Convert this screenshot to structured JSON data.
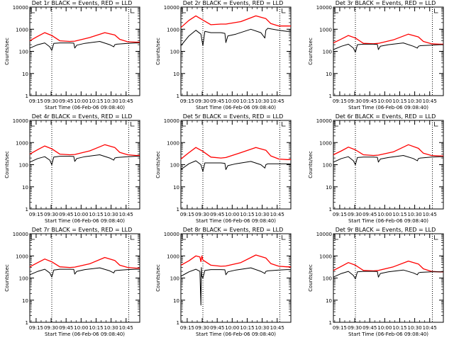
{
  "page": {
    "background": "#ffffff",
    "colors": {
      "axes": "#000000",
      "events": "#000000",
      "lld": "#ff0000"
    }
  },
  "chart_data": [
    {
      "type": "line",
      "title": "Det 1r BLACK = Events, RED = LLD",
      "ylabel": "Counts/sec",
      "xlabel": "Start Time (06-Feb-06 09:08:40)",
      "xticks": [
        "09:15",
        "09:30",
        "09:45",
        "10:00",
        "10:15",
        "10:30",
        "10:45"
      ],
      "xlim_minutes": [
        0,
        110
      ],
      "yscale": "log",
      "ylim": [
        1,
        10000
      ],
      "yticks": [
        "1",
        "10",
        "100",
        "1000",
        "10000"
      ],
      "vlines_minutes": [
        22,
        99
      ],
      "series": [
        {
          "color": "#ff0000",
          "x": [
            0,
            8,
            15,
            22,
            30,
            40,
            45,
            60,
            75,
            85,
            90,
            98,
            106,
            110
          ],
          "y": [
            300,
            480,
            700,
            520,
            300,
            280,
            290,
            420,
            700,
            550,
            350,
            270,
            260,
            260
          ]
        },
        {
          "color": "#000000",
          "x": [
            0,
            8,
            15,
            20,
            22,
            24,
            30,
            40,
            44,
            45,
            47,
            55,
            70,
            80,
            84,
            85,
            87,
            98,
            106,
            110
          ],
          "y": [
            140,
            200,
            240,
            160,
            110,
            230,
            240,
            240,
            235,
            140,
            190,
            230,
            280,
            200,
            160,
            200,
            210,
            230,
            240,
            240
          ]
        }
      ]
    },
    {
      "type": "line",
      "title": "Det 2r BLACK = Events, RED = LLD",
      "ylabel": "Counts/sec",
      "xlabel": "Start Time (06-Feb-06 09:08:40)",
      "xticks": [
        "09:15",
        "09:30",
        "09:45",
        "10:00",
        "10:15",
        "10:30",
        "10:45"
      ],
      "xlim_minutes": [
        0,
        110
      ],
      "yscale": "log",
      "ylim": [
        1,
        10000
      ],
      "yticks": [
        "1",
        "10",
        "100",
        "1000",
        "10000"
      ],
      "vlines_minutes": [
        22,
        99
      ],
      "series": [
        {
          "color": "#ff0000",
          "x": [
            0,
            8,
            15,
            22,
            30,
            40,
            45,
            60,
            75,
            85,
            90,
            98,
            106,
            110
          ],
          "y": [
            1200,
            2500,
            4000,
            2600,
            1600,
            1700,
            1700,
            2200,
            4000,
            3000,
            1800,
            1400,
            1400,
            1400
          ]
        },
        {
          "color": "#000000",
          "x": [
            0,
            8,
            15,
            20,
            22,
            24,
            30,
            40,
            44,
            45,
            47,
            55,
            70,
            80,
            84,
            85,
            87,
            98,
            106,
            110
          ],
          "y": [
            180,
            500,
            900,
            600,
            180,
            800,
            700,
            700,
            650,
            250,
            500,
            600,
            1000,
            700,
            400,
            900,
            1100,
            900,
            800,
            800
          ]
        }
      ]
    },
    {
      "type": "line",
      "title": "Det 3r BLACK = Events, RED = LLD",
      "ylabel": "Counts/sec",
      "xlabel": "Start Time (06-Feb-06 09:08:40)",
      "xticks": [
        "09:15",
        "09:30",
        "09:45",
        "10:00",
        "10:15",
        "10:30",
        "10:45"
      ],
      "xlim_minutes": [
        0,
        110
      ],
      "yscale": "log",
      "ylim": [
        1,
        10000
      ],
      "yticks": [
        "1",
        "10",
        "100",
        "1000",
        "10000"
      ],
      "vlines_minutes": [
        22,
        99
      ],
      "series": [
        {
          "color": "#ff0000",
          "x": [
            0,
            8,
            15,
            22,
            30,
            40,
            45,
            60,
            75,
            85,
            90,
            98,
            106,
            110
          ],
          "y": [
            240,
            360,
            520,
            400,
            230,
            220,
            230,
            330,
            600,
            450,
            280,
            220,
            210,
            210
          ]
        },
        {
          "color": "#000000",
          "x": [
            0,
            8,
            15,
            20,
            22,
            24,
            30,
            40,
            44,
            45,
            47,
            55,
            70,
            80,
            84,
            85,
            87,
            98,
            106,
            110
          ],
          "y": [
            120,
            170,
            210,
            140,
            90,
            200,
            210,
            210,
            205,
            120,
            170,
            200,
            240,
            170,
            140,
            170,
            180,
            190,
            200,
            200
          ]
        }
      ]
    },
    {
      "type": "line",
      "title": "Det 4r BLACK = Events, RED = LLD",
      "ylabel": "Counts/sec",
      "xlabel": "Start Time (06-Feb-06 09:08:40)",
      "xticks": [
        "09:15",
        "09:30",
        "09:45",
        "10:00",
        "10:15",
        "10:30",
        "10:45"
      ],
      "xlim_minutes": [
        0,
        110
      ],
      "yscale": "log",
      "ylim": [
        1,
        10000
      ],
      "yticks": [
        "1",
        "10",
        "100",
        "1000",
        "10000"
      ],
      "vlines_minutes": [
        22,
        99
      ],
      "series": [
        {
          "color": "#ff0000",
          "x": [
            0,
            8,
            15,
            22,
            30,
            40,
            45,
            60,
            75,
            85,
            90,
            98,
            106,
            110
          ],
          "y": [
            300,
            480,
            700,
            520,
            300,
            280,
            290,
            420,
            800,
            600,
            360,
            280,
            260,
            260
          ]
        },
        {
          "color": "#000000",
          "x": [
            0,
            8,
            15,
            20,
            22,
            24,
            30,
            40,
            44,
            45,
            47,
            55,
            70,
            80,
            84,
            85,
            87,
            98,
            106,
            110
          ],
          "y": [
            130,
            190,
            230,
            160,
            100,
            220,
            240,
            240,
            235,
            140,
            190,
            230,
            280,
            200,
            160,
            200,
            210,
            230,
            240,
            240
          ]
        }
      ]
    },
    {
      "type": "line",
      "title": "Det 5r BLACK = Events, RED = LLD",
      "ylabel": "Counts/sec",
      "xlabel": "Start Time (06-Feb-06 09:08:40)",
      "xticks": [
        "09:15",
        "09:30",
        "09:45",
        "10:00",
        "10:15",
        "10:30",
        "10:45"
      ],
      "xlim_minutes": [
        0,
        110
      ],
      "yscale": "log",
      "ylim": [
        1,
        10000
      ],
      "yticks": [
        "1",
        "10",
        "100",
        "1000",
        "10000"
      ],
      "vlines_minutes": [
        22,
        99
      ],
      "series": [
        {
          "color": "#ff0000",
          "x": [
            0,
            8,
            15,
            22,
            30,
            40,
            45,
            60,
            75,
            85,
            90,
            98,
            106,
            110
          ],
          "y": [
            180,
            350,
            600,
            400,
            220,
            200,
            210,
            350,
            600,
            450,
            250,
            180,
            170,
            170
          ]
        },
        {
          "color": "#000000",
          "x": [
            0,
            8,
            15,
            20,
            22,
            24,
            30,
            40,
            44,
            45,
            47,
            55,
            70,
            80,
            84,
            85,
            87,
            98,
            106,
            110
          ],
          "y": [
            60,
            110,
            150,
            100,
            50,
            120,
            120,
            120,
            115,
            60,
            90,
            110,
            140,
            100,
            70,
            100,
            110,
            110,
            110,
            110
          ]
        }
      ]
    },
    {
      "type": "line",
      "title": "Det 6r BLACK = Events, RED = LLD",
      "ylabel": "Counts/sec",
      "xlabel": "Start Time (06-Feb-06 09:08:40)",
      "xticks": [
        "09:15",
        "09:30",
        "09:45",
        "10:00",
        "10:15",
        "10:30",
        "10:45"
      ],
      "xlim_minutes": [
        0,
        110
      ],
      "yscale": "log",
      "ylim": [
        1,
        10000
      ],
      "yticks": [
        "1",
        "10",
        "100",
        "1000",
        "10000"
      ],
      "vlines_minutes": [
        22,
        99
      ],
      "series": [
        {
          "color": "#ff0000",
          "x": [
            0,
            8,
            15,
            22,
            30,
            40,
            45,
            60,
            75,
            85,
            90,
            98,
            106,
            110
          ],
          "y": [
            280,
            420,
            620,
            470,
            280,
            260,
            270,
            380,
            800,
            550,
            330,
            260,
            250,
            250
          ]
        },
        {
          "color": "#000000",
          "x": [
            0,
            8,
            15,
            20,
            22,
            24,
            30,
            40,
            44,
            45,
            47,
            55,
            70,
            80,
            84,
            85,
            87,
            98,
            106,
            110
          ],
          "y": [
            130,
            190,
            230,
            150,
            100,
            210,
            220,
            220,
            215,
            130,
            180,
            210,
            260,
            190,
            150,
            190,
            200,
            220,
            230,
            230
          ]
        }
      ]
    },
    {
      "type": "line",
      "title": "Det 7r BLACK = Events, RED = LLD",
      "ylabel": "Counts/sec",
      "xlabel": "Start Time (06-Feb-06 09:08:40)",
      "xticks": [
        "09:15",
        "09:30",
        "09:45",
        "10:00",
        "10:15",
        "10:30",
        "10:45"
      ],
      "xlim_minutes": [
        0,
        110
      ],
      "yscale": "log",
      "ylim": [
        1,
        10000
      ],
      "yticks": [
        "1",
        "10",
        "100",
        "1000",
        "10000"
      ],
      "vlines_minutes": [
        22,
        99
      ],
      "series": [
        {
          "color": "#ff0000",
          "x": [
            0,
            8,
            15,
            22,
            30,
            40,
            45,
            60,
            75,
            85,
            90,
            98,
            106,
            110
          ],
          "y": [
            320,
            500,
            720,
            540,
            320,
            300,
            310,
            440,
            850,
            620,
            380,
            300,
            280,
            280
          ]
        },
        {
          "color": "#000000",
          "x": [
            0,
            8,
            15,
            20,
            22,
            24,
            30,
            40,
            44,
            45,
            47,
            55,
            70,
            80,
            84,
            85,
            87,
            98,
            106,
            110
          ],
          "y": [
            140,
            200,
            250,
            170,
            110,
            230,
            250,
            250,
            245,
            150,
            200,
            240,
            290,
            210,
            170,
            210,
            220,
            240,
            250,
            250
          ]
        }
      ]
    },
    {
      "type": "line",
      "title": "Det 8r BLACK = Events, RED = LLD",
      "ylabel": "Counts/sec",
      "xlabel": "Start Time (06-Feb-06 09:08:40)",
      "xticks": [
        "09:15",
        "09:30",
        "09:45",
        "10:00",
        "10:15",
        "10:30",
        "10:45"
      ],
      "xlim_minutes": [
        0,
        110
      ],
      "yscale": "log",
      "ylim": [
        1,
        10000
      ],
      "yticks": [
        "1",
        "10",
        "100",
        "1000",
        "10000"
      ],
      "vlines_minutes": [
        22,
        99
      ],
      "series": [
        {
          "color": "#ff0000",
          "x": [
            0,
            8,
            15,
            19,
            20,
            21,
            22,
            30,
            40,
            45,
            60,
            75,
            85,
            90,
            98,
            106,
            110
          ],
          "y": [
            380,
            600,
            1000,
            900,
            550,
            1000,
            650,
            380,
            340,
            350,
            500,
            1100,
            800,
            450,
            340,
            320,
            320
          ]
        },
        {
          "color": "#000000",
          "x": [
            0,
            8,
            15,
            19,
            20,
            20.5,
            21,
            22,
            24,
            30,
            40,
            44,
            45,
            47,
            55,
            70,
            80,
            84,
            85,
            87,
            98,
            106,
            110
          ],
          "y": [
            120,
            190,
            250,
            200,
            6,
            300,
            120,
            100,
            220,
            240,
            240,
            235,
            140,
            190,
            230,
            290,
            200,
            160,
            200,
            210,
            230,
            240,
            240
          ]
        }
      ]
    },
    {
      "type": "line",
      "title": "Det 9r BLACK = Events, RED = LLD",
      "ylabel": "Counts/sec",
      "xlabel": "Start Time (06-Feb-06 09:08:40)",
      "xticks": [
        "09:15",
        "09:30",
        "09:45",
        "10:00",
        "10:15",
        "10:30",
        "10:45"
      ],
      "xlim_minutes": [
        0,
        110
      ],
      "yscale": "log",
      "ylim": [
        1,
        10000
      ],
      "yticks": [
        "1",
        "10",
        "100",
        "1000",
        "10000"
      ],
      "vlines_minutes": [
        22,
        99
      ],
      "series": [
        {
          "color": "#ff0000",
          "x": [
            0,
            8,
            15,
            22,
            30,
            40,
            45,
            60,
            75,
            85,
            90,
            98,
            106,
            110
          ],
          "y": [
            220,
            340,
            500,
            380,
            220,
            210,
            220,
            320,
            580,
            430,
            260,
            200,
            190,
            190
          ]
        },
        {
          "color": "#000000",
          "x": [
            0,
            8,
            15,
            20,
            22,
            24,
            30,
            40,
            44,
            45,
            47,
            55,
            70,
            80,
            84,
            85,
            87,
            98,
            106,
            110
          ],
          "y": [
            110,
            160,
            200,
            130,
            90,
            190,
            200,
            200,
            195,
            110,
            160,
            190,
            230,
            170,
            140,
            170,
            180,
            190,
            190,
            190
          ]
        }
      ]
    }
  ]
}
